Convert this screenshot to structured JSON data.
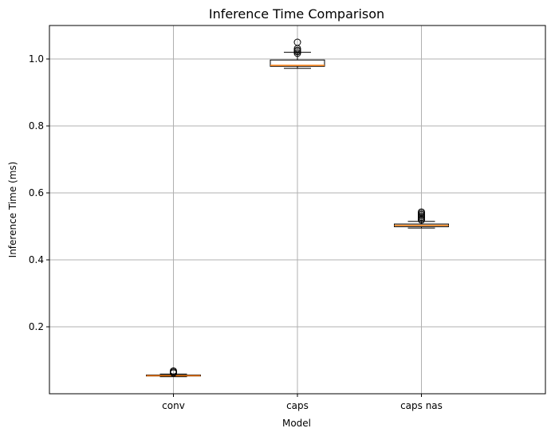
{
  "chart_data": {
    "type": "box",
    "title": "Inference Time Comparison",
    "xlabel": "Model",
    "ylabel": "Inference Time (ms)",
    "categories": [
      "conv",
      "caps",
      "caps nas"
    ],
    "ylim": [
      0.0,
      1.1
    ],
    "yticks": [
      0.2,
      0.4,
      0.6,
      0.8,
      1.0
    ],
    "ytick_labels": [
      "0.2",
      "0.4",
      "0.6",
      "0.8",
      "1.0"
    ],
    "grid": true,
    "boxes": [
      {
        "name": "conv",
        "whisker_low": 0.051,
        "q1": 0.053,
        "median": 0.054,
        "q3": 0.056,
        "whisker_high": 0.059,
        "fliers": [
          0.062,
          0.065,
          0.068
        ]
      },
      {
        "name": "caps",
        "whisker_low": 0.972,
        "q1": 0.978,
        "median": 0.981,
        "q3": 0.997,
        "whisker_high": 1.02,
        "fliers": [
          1.017,
          1.022,
          1.026,
          1.031,
          1.05
        ]
      },
      {
        "name": "caps nas",
        "whisker_low": 0.495,
        "q1": 0.499,
        "median": 0.503,
        "q3": 0.507,
        "whisker_high": 0.515,
        "fliers": [
          0.519,
          0.523,
          0.527,
          0.531,
          0.535,
          0.539,
          0.543
        ]
      }
    ],
    "colors": {
      "box": "#000000",
      "median": "#ff7f0e",
      "grid": "#b0b0b0",
      "flier": "#000000"
    }
  }
}
